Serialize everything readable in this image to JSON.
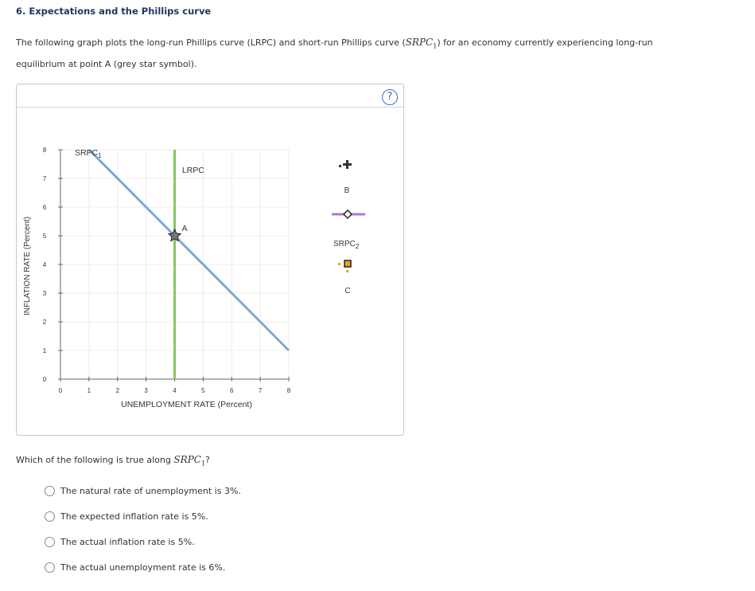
{
  "heading": "6. Expectations and the Phillips curve",
  "intro": {
    "text_before": "The following graph plots the long-run Phillips curve (LRPC) and short-run Phillips curve (",
    "math_main": "SRPC",
    "math_sub": "1",
    "text_after": ") for an economy currently experiencing long-run equilibrium at point A (grey star symbol)."
  },
  "help_label": "?",
  "chart_data": {
    "type": "line",
    "xlabel": "UNEMPLOYMENT RATE (Percent)",
    "ylabel": "INFLATION RATE (Percent)",
    "xlim": [
      0,
      8
    ],
    "ylim": [
      0,
      8
    ],
    "xticks": [
      "0",
      "1",
      "2",
      "3",
      "4",
      "5",
      "6",
      "7",
      "8"
    ],
    "yticks": [
      "0",
      "1",
      "2",
      "3",
      "4",
      "5",
      "6",
      "7",
      "8"
    ],
    "grid": true,
    "series": [
      {
        "name": "SRPC1",
        "label_main": "SRPC",
        "label_sub": "1",
        "color": "#7fa7d6",
        "points": [
          [
            1,
            8
          ],
          [
            8,
            1
          ]
        ]
      },
      {
        "name": "LRPC",
        "label_main": "LRPC",
        "color": "#86c95d",
        "points": [
          [
            4,
            0
          ],
          [
            4,
            8
          ]
        ]
      }
    ],
    "points": [
      {
        "name": "A",
        "x": 4,
        "y": 5,
        "marker": "star",
        "color": "#555555"
      }
    ]
  },
  "palette": {
    "label_B": "B",
    "label_SRPC2_main": "SRPC",
    "label_SRPC2_sub": "2",
    "label_C": "C",
    "color_B": "#333333",
    "color_SRPC2": "#b07ad0",
    "color_C": "#f0a020"
  },
  "question": {
    "text_before": "Which of the following is true along ",
    "math_main": "SRPC",
    "math_sub": "1",
    "text_after": "?"
  },
  "options": [
    {
      "label": "The natural rate of unemployment is 3%."
    },
    {
      "label": "The expected inflation rate is 5%."
    },
    {
      "label": "The actual inflation rate is 5%."
    },
    {
      "label": "The actual unemployment rate is 6%."
    }
  ]
}
